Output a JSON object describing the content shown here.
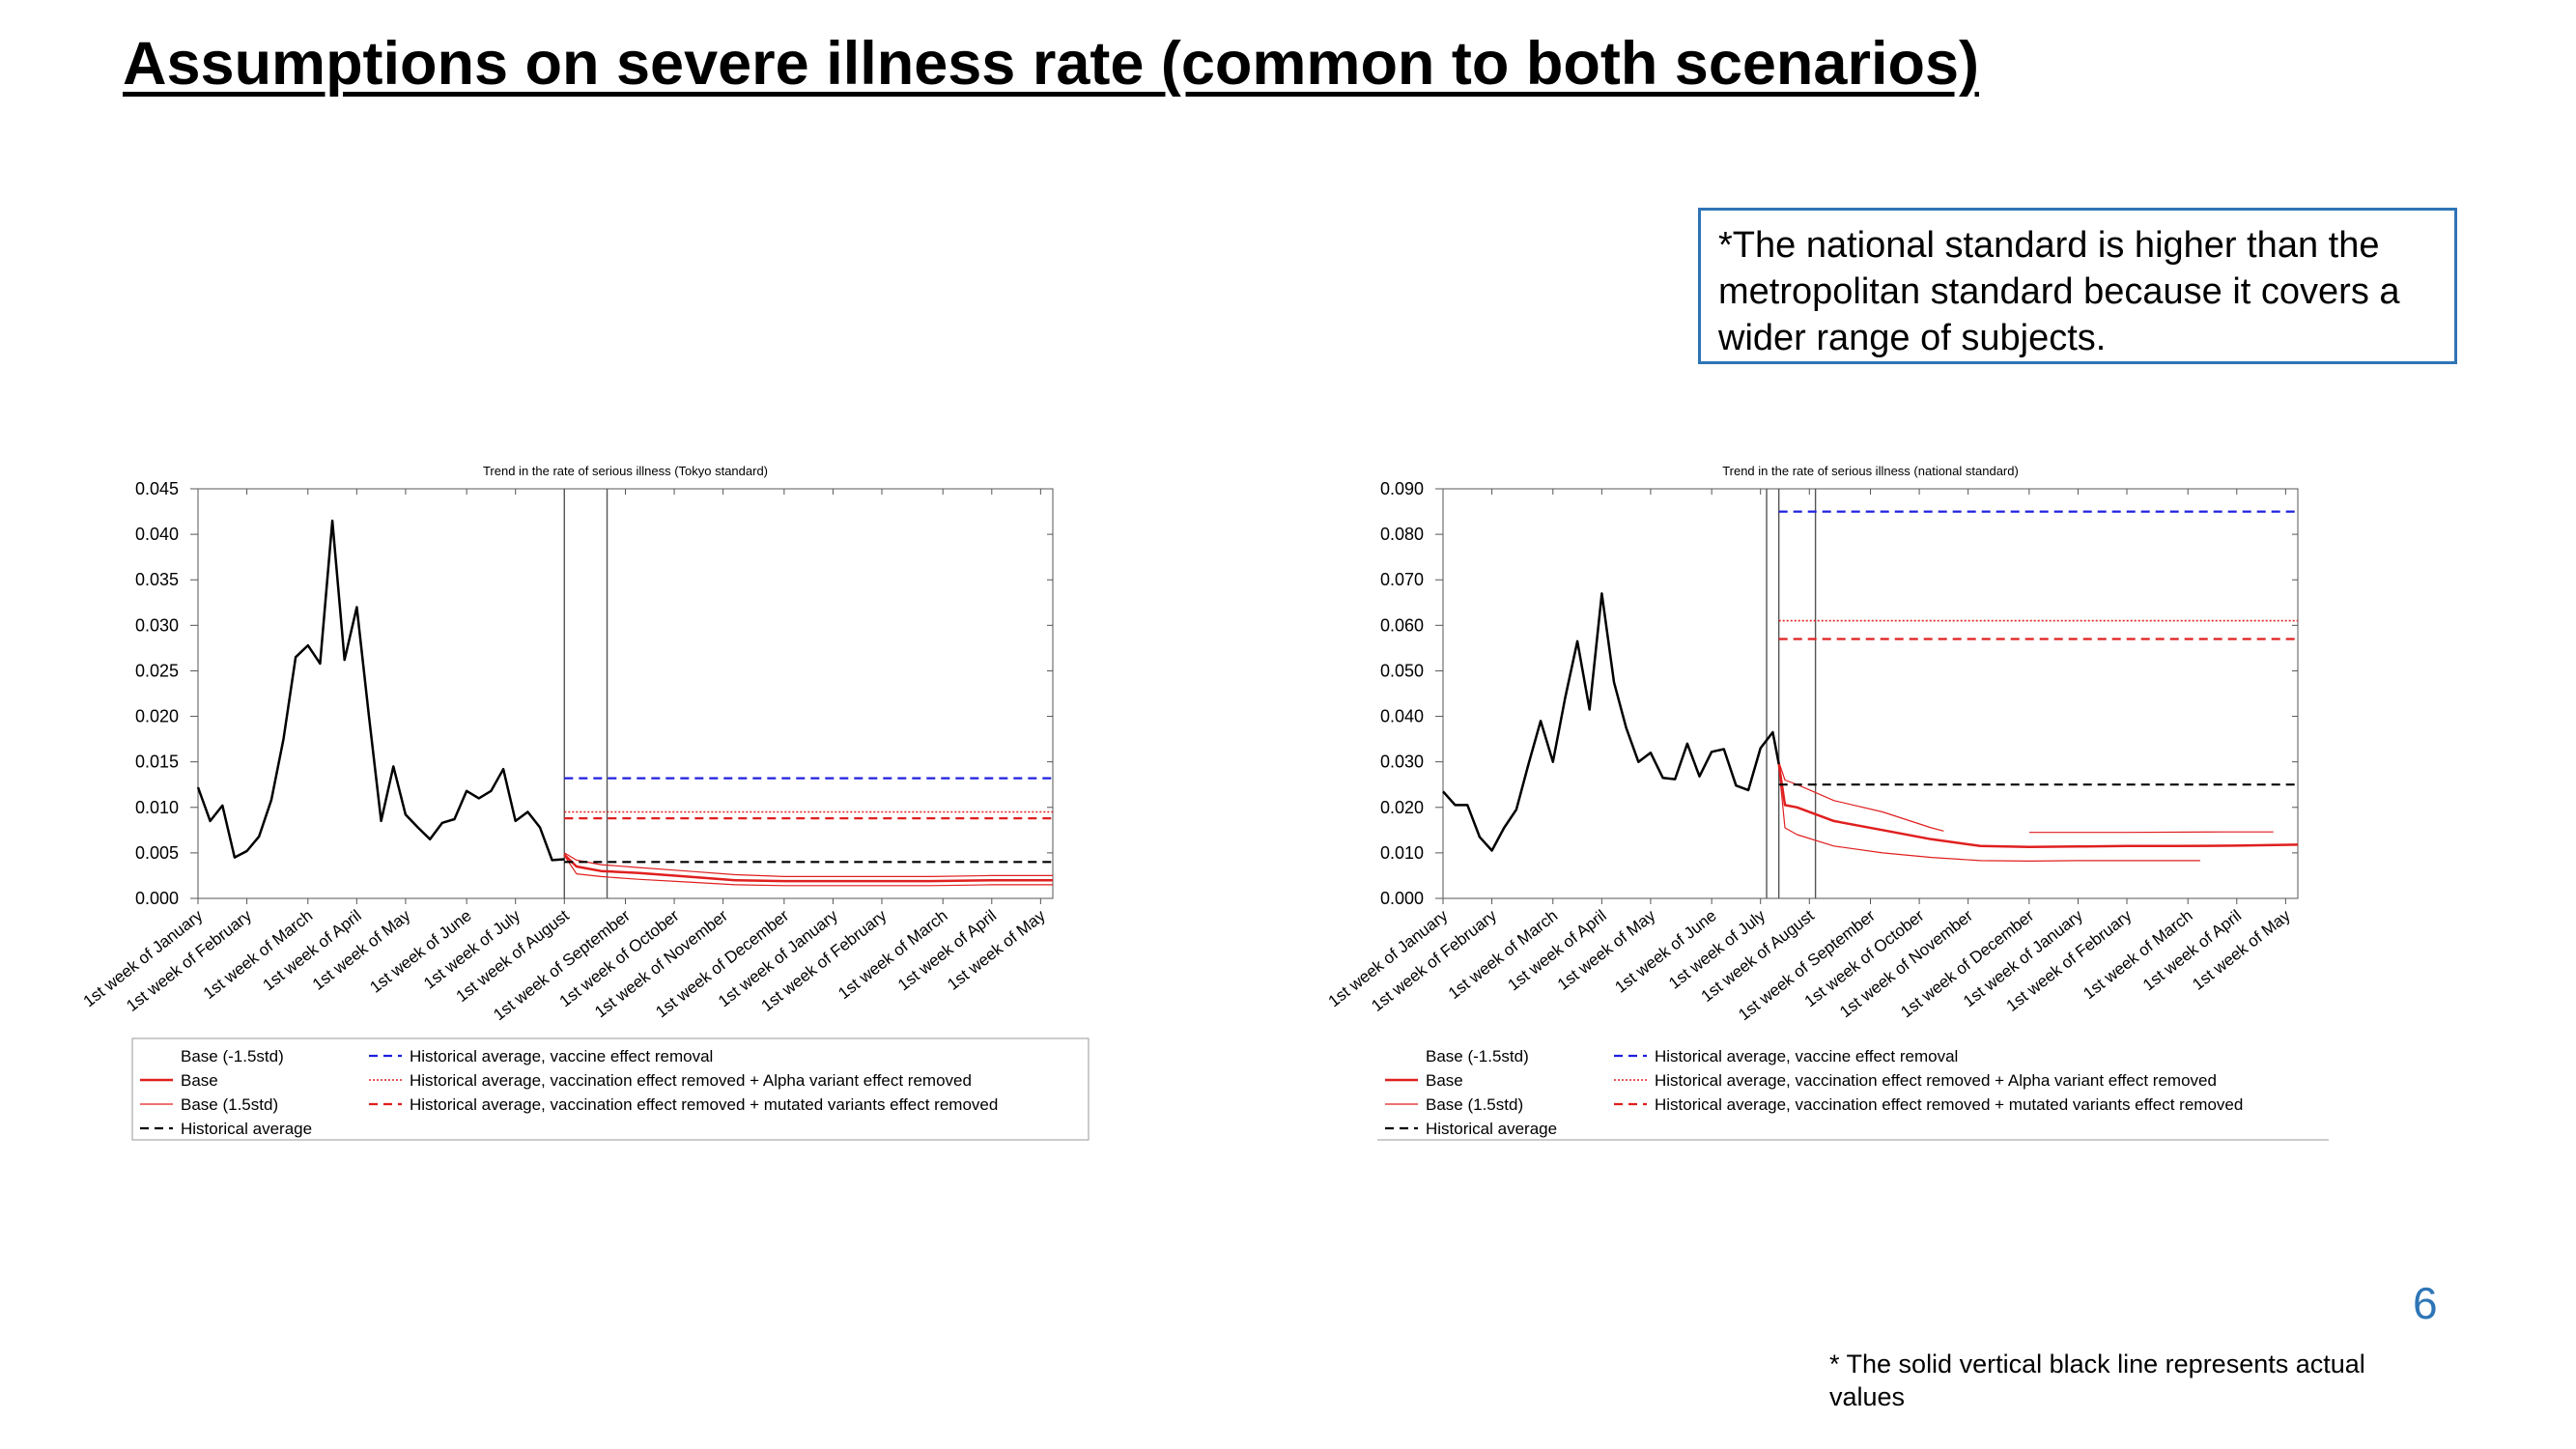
{
  "page": {
    "title": "Assumptions on severe illness rate (common to both scenarios)",
    "note": "*The national standard is higher than the metropolitan standard because it covers a wider range of subjects.",
    "page_number": "6",
    "footnote": "* The solid vertical black line represents actual values"
  },
  "chart_data": [
    {
      "type": "line",
      "title": "Trend in the rate of serious illness (Tokyo standard)",
      "xlabel": "",
      "ylabel": "",
      "ylim": [
        0,
        0.045
      ],
      "yticks": [
        "0.000",
        "0.005",
        "0.010",
        "0.015",
        "0.020",
        "0.025",
        "0.030",
        "0.035",
        "0.040",
        "0.045"
      ],
      "x_range": [
        0,
        70
      ],
      "x_ticks": [
        {
          "x": 0,
          "label": "1st week of January"
        },
        {
          "x": 4,
          "label": "1st week of February"
        },
        {
          "x": 9,
          "label": "1st week of March"
        },
        {
          "x": 13,
          "label": "1st week of April"
        },
        {
          "x": 17,
          "label": "1st week of May"
        },
        {
          "x": 22,
          "label": "1st week of June"
        },
        {
          "x": 26,
          "label": "1st week of July"
        },
        {
          "x": 30,
          "label": "1st week of August"
        },
        {
          "x": 35,
          "label": "1st week of September"
        },
        {
          "x": 39,
          "label": "1st week of October"
        },
        {
          "x": 43,
          "label": "1st week of November"
        },
        {
          "x": 48,
          "label": "1st week of December"
        },
        {
          "x": 52,
          "label": "1st week of January"
        },
        {
          "x": 56,
          "label": "1st week of February"
        },
        {
          "x": 61,
          "label": "1st week of March"
        },
        {
          "x": 65,
          "label": "1st week of April"
        },
        {
          "x": 69,
          "label": "1st week of May"
        }
      ],
      "vlines": [
        30,
        33.5
      ],
      "series": [
        {
          "name": "Base (-1.5std)",
          "color": "#e01f1f",
          "dash": "",
          "width": 1.2,
          "x": [
            30,
            31,
            33,
            36,
            40,
            44,
            48,
            52,
            56,
            60,
            65,
            70
          ],
          "y": [
            0.0047,
            0.0027,
            0.0024,
            0.0021,
            0.0018,
            0.0015,
            0.0014,
            0.0014,
            0.0014,
            0.0014,
            0.0015,
            0.0015
          ]
        },
        {
          "name": "Base",
          "color": "#e01f1f",
          "dash": "",
          "width": 2.5,
          "x": [
            30,
            31,
            33,
            36,
            40,
            44,
            48,
            52,
            56,
            60,
            65,
            70
          ],
          "y": [
            0.0048,
            0.0035,
            0.003,
            0.0028,
            0.0024,
            0.002,
            0.0019,
            0.0019,
            0.0019,
            0.0019,
            0.002,
            0.002
          ]
        },
        {
          "name": "Base (1.5std)",
          "color": "#e01f1f",
          "dash": "",
          "width": 1.2,
          "x": [
            30,
            31,
            33,
            36,
            40,
            44,
            48,
            52,
            56,
            60,
            65,
            70
          ],
          "y": [
            0.005,
            0.0042,
            0.0037,
            0.0034,
            0.003,
            0.0026,
            0.0024,
            0.0024,
            0.0024,
            0.0024,
            0.0025,
            0.0025
          ]
        },
        {
          "name": "Historical average",
          "color": "#000000",
          "dash": "9,6",
          "width": 2.2,
          "x": [
            30,
            70
          ],
          "y": [
            0.004,
            0.004
          ]
        },
        {
          "name": "Historical average, vaccine effect removal",
          "color": "#1f1fe0",
          "dash": "9,6",
          "width": 2.2,
          "x": [
            30,
            70
          ],
          "y": [
            0.0132,
            0.0132
          ]
        },
        {
          "name": "Historical average, vaccination effect removed + Alpha variant effect removed",
          "color": "#e01f1f",
          "dash": "2,2",
          "width": 1.6,
          "x": [
            30,
            70
          ],
          "y": [
            0.0095,
            0.0095
          ]
        },
        {
          "name": "Historical average, vaccination effect removed + mutated variants effect removed",
          "color": "#e01f1f",
          "dash": "9,6",
          "width": 2.2,
          "x": [
            30,
            70
          ],
          "y": [
            0.0088,
            0.0088
          ]
        },
        {
          "name": "",
          "color": "#000000",
          "dash": "",
          "width": 2.5,
          "x": [
            0,
            1,
            2,
            3,
            4,
            5,
            6,
            7,
            8,
            9,
            10,
            11,
            12,
            13,
            14,
            15,
            16,
            17,
            18,
            19,
            20,
            21,
            22,
            23,
            24,
            25,
            26,
            27,
            28,
            29,
            30
          ],
          "y": [
            0.0122,
            0.0085,
            0.0102,
            0.0045,
            0.0052,
            0.0068,
            0.0108,
            0.0175,
            0.0265,
            0.0278,
            0.0258,
            0.0415,
            0.0262,
            0.032,
            0.02,
            0.0085,
            0.0145,
            0.0092,
            0.0078,
            0.0065,
            0.0083,
            0.0087,
            0.0118,
            0.011,
            0.0118,
            0.0142,
            0.0085,
            0.0095,
            0.0078,
            0.0042,
            0.0043
          ]
        }
      ],
      "legend": {
        "placement": "bottom",
        "entries": [
          {
            "label": "Base (-1.5std)",
            "color": "#e01f1f",
            "dash": "",
            "width": 1.2
          },
          {
            "label": "Base",
            "color": "#e01f1f",
            "dash": "",
            "width": 2.5
          },
          {
            "label": "Base (1.5std)",
            "color": "#e01f1f",
            "dash": "",
            "width": 1.2
          },
          {
            "label": "Historical average",
            "color": "#000000",
            "dash": "9,6",
            "width": 2.2
          },
          {
            "label": "Historical average, vaccine effect removal",
            "color": "#1f1fe0",
            "dash": "9,6",
            "width": 2.2
          },
          {
            "label": "Historical average, vaccination effect removed + Alpha variant effect removed",
            "color": "#e01f1f",
            "dash": "2,2",
            "width": 1.6
          },
          {
            "label": "Historical average, vaccination effect removed + mutated variants effect removed",
            "color": "#e01f1f",
            "dash": "9,6",
            "width": 2.2
          }
        ]
      }
    },
    {
      "type": "line",
      "title": "Trend in the rate of serious illness (national standard)",
      "xlabel": "",
      "ylabel": "",
      "ylim": [
        0,
        0.09
      ],
      "yticks": [
        "0.000",
        "0.010",
        "0.020",
        "0.030",
        "0.040",
        "0.050",
        "0.060",
        "0.070",
        "0.080",
        "0.090"
      ],
      "x_range": [
        0,
        70
      ],
      "x_ticks": [
        {
          "x": 0,
          "label": "1st week of January"
        },
        {
          "x": 4,
          "label": "1st week of February"
        },
        {
          "x": 9,
          "label": "1st week of March"
        },
        {
          "x": 13,
          "label": "1st week of April"
        },
        {
          "x": 17,
          "label": "1st week of May"
        },
        {
          "x": 22,
          "label": "1st week of June"
        },
        {
          "x": 26,
          "label": "1st week of July"
        },
        {
          "x": 30,
          "label": "1st week of August"
        },
        {
          "x": 35,
          "label": "1st week of September"
        },
        {
          "x": 39,
          "label": "1st week of October"
        },
        {
          "x": 43,
          "label": "1st week of November"
        },
        {
          "x": 48,
          "label": "1st week of December"
        },
        {
          "x": 52,
          "label": "1st week of January"
        },
        {
          "x": 56,
          "label": "1st week of February"
        },
        {
          "x": 61,
          "label": "1st week of March"
        },
        {
          "x": 65,
          "label": "1st week of April"
        },
        {
          "x": 69,
          "label": "1st week of May"
        }
      ],
      "vlines": [
        26.5,
        27.5,
        30.5
      ],
      "series": [
        {
          "name": "Base (-1.5std)",
          "color": "#e01f1f",
          "dash": "",
          "width": 1.2,
          "x": [
            27.5,
            28,
            29,
            32,
            36,
            40,
            44,
            48,
            52,
            56,
            60,
            62
          ],
          "y": [
            0.029,
            0.0155,
            0.014,
            0.0115,
            0.01,
            0.009,
            0.0083,
            0.0082,
            0.0083,
            0.0083,
            0.0083,
            0.0083
          ]
        },
        {
          "name": "Base",
          "color": "#e01f1f",
          "dash": "",
          "width": 2.5,
          "x": [
            27.5,
            28,
            29,
            32,
            36,
            40,
            44,
            48,
            52,
            56,
            60,
            65,
            70
          ],
          "y": [
            0.0295,
            0.0205,
            0.02,
            0.017,
            0.015,
            0.013,
            0.0115,
            0.0113,
            0.0114,
            0.0115,
            0.0115,
            0.0116,
            0.0118
          ]
        },
        {
          "name": "Base (1.5std)",
          "color": "#e01f1f",
          "dash": "",
          "width": 1.2,
          "x": [
            27.5,
            28,
            29,
            32,
            36,
            40,
            41
          ],
          "y": [
            0.03,
            0.026,
            0.025,
            0.0215,
            0.019,
            0.0155,
            0.0148
          ]
        },
        {
          "name": "Base (1.5std)",
          "color": "#e01f1f",
          "dash": "",
          "width": 1.2,
          "x": [
            48,
            56,
            64,
            68
          ],
          "y": [
            0.0145,
            0.0145,
            0.0146,
            0.0146
          ]
        },
        {
          "name": "Historical average",
          "color": "#000000",
          "dash": "9,6",
          "width": 2.2,
          "x": [
            27.5,
            70
          ],
          "y": [
            0.025,
            0.025
          ]
        },
        {
          "name": "Historical average, vaccine effect removal",
          "color": "#1f1fe0",
          "dash": "9,6",
          "width": 2.2,
          "x": [
            27.5,
            70
          ],
          "y": [
            0.085,
            0.085
          ]
        },
        {
          "name": "Historical average, vaccination effect removed + Alpha variant effect removed",
          "color": "#e01f1f",
          "dash": "2,2",
          "width": 1.6,
          "x": [
            27.5,
            70
          ],
          "y": [
            0.061,
            0.061
          ]
        },
        {
          "name": "Historical average, vaccination effect removed + mutated variants effect removed",
          "color": "#e01f1f",
          "dash": "9,6",
          "width": 2.2,
          "x": [
            27.5,
            70
          ],
          "y": [
            0.057,
            0.057
          ]
        },
        {
          "name": "",
          "color": "#000000",
          "dash": "",
          "width": 2.5,
          "x": [
            0,
            1,
            2,
            3,
            4,
            5,
            6,
            7,
            8,
            9,
            10,
            11,
            12,
            13,
            14,
            15,
            16,
            17,
            18,
            19,
            20,
            21,
            22,
            23,
            24,
            25,
            26,
            27,
            27.5
          ],
          "y": [
            0.0235,
            0.0205,
            0.0205,
            0.0135,
            0.0105,
            0.0155,
            0.0195,
            0.0295,
            0.039,
            0.03,
            0.044,
            0.0565,
            0.0415,
            0.067,
            0.0475,
            0.0375,
            0.03,
            0.032,
            0.0265,
            0.0262,
            0.034,
            0.0268,
            0.0322,
            0.0328,
            0.0248,
            0.0238,
            0.033,
            0.0365,
            0.0295
          ]
        }
      ],
      "legend": {
        "placement": "bottom",
        "entries": [
          {
            "label": "Base (-1.5std)",
            "color": "#e01f1f",
            "dash": "",
            "width": 1.2
          },
          {
            "label": "Base",
            "color": "#e01f1f",
            "dash": "",
            "width": 2.5
          },
          {
            "label": "Base (1.5std)",
            "color": "#e01f1f",
            "dash": "",
            "width": 1.2
          },
          {
            "label": "Historical average",
            "color": "#000000",
            "dash": "9,6",
            "width": 2.2
          },
          {
            "label": "Historical average, vaccine effect removal",
            "color": "#1f1fe0",
            "dash": "9,6",
            "width": 2.2
          },
          {
            "label": "Historical average, vaccination effect removed + Alpha variant effect removed",
            "color": "#e01f1f",
            "dash": "2,2",
            "width": 1.6
          },
          {
            "label": "Historical average, vaccination effect removed + mutated variants effect removed",
            "color": "#e01f1f",
            "dash": "9,6",
            "width": 2.2
          }
        ]
      }
    }
  ]
}
